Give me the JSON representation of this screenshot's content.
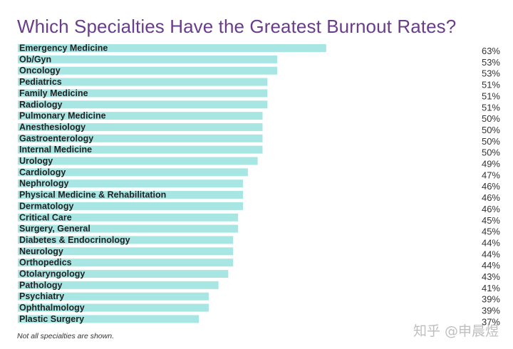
{
  "chart_data": {
    "type": "bar",
    "orientation": "horizontal",
    "title": "Which Specialties Have the Greatest Burnout Rates?",
    "categories": [
      "Emergency Medicine",
      "Ob/Gyn",
      "Oncology",
      "Pediatrics",
      "Family Medicine",
      "Radiology",
      "Pulmonary Medicine",
      "Anesthesiology",
      "Gastroenterology",
      "Internal Medicine",
      "Urology",
      "Cardiology",
      "Nephrology",
      "Physical Medicine & Rehabilitation",
      "Dermatology",
      "Critical Care",
      "Surgery, General",
      "Diabetes & Endocrinology",
      "Neurology",
      "Orthopedics",
      "Otolaryngology",
      "Pathology",
      "Psychiatry",
      "Ophthalmology",
      "Plastic Surgery"
    ],
    "values": [
      63,
      53,
      53,
      51,
      51,
      51,
      50,
      50,
      50,
      50,
      49,
      47,
      46,
      46,
      46,
      45,
      45,
      44,
      44,
      44,
      43,
      41,
      39,
      39,
      37
    ],
    "value_labels": [
      "63%",
      "53%",
      "53%",
      "51%",
      "51%",
      "51%",
      "50%",
      "50%",
      "50%",
      "50%",
      "49%",
      "47%",
      "46%",
      "46%",
      "46%",
      "45%",
      "45%",
      "44%",
      "44%",
      "44%",
      "43%",
      "41%",
      "39%",
      "39%",
      "37%"
    ],
    "unit": "%",
    "xlim": [
      0,
      100
    ],
    "grid": false,
    "bar_color": "#a8e6e4",
    "title_color": "#6a3d8c"
  },
  "footnote": "Not all specialties are shown.",
  "watermark": "知乎 @申晨煜"
}
